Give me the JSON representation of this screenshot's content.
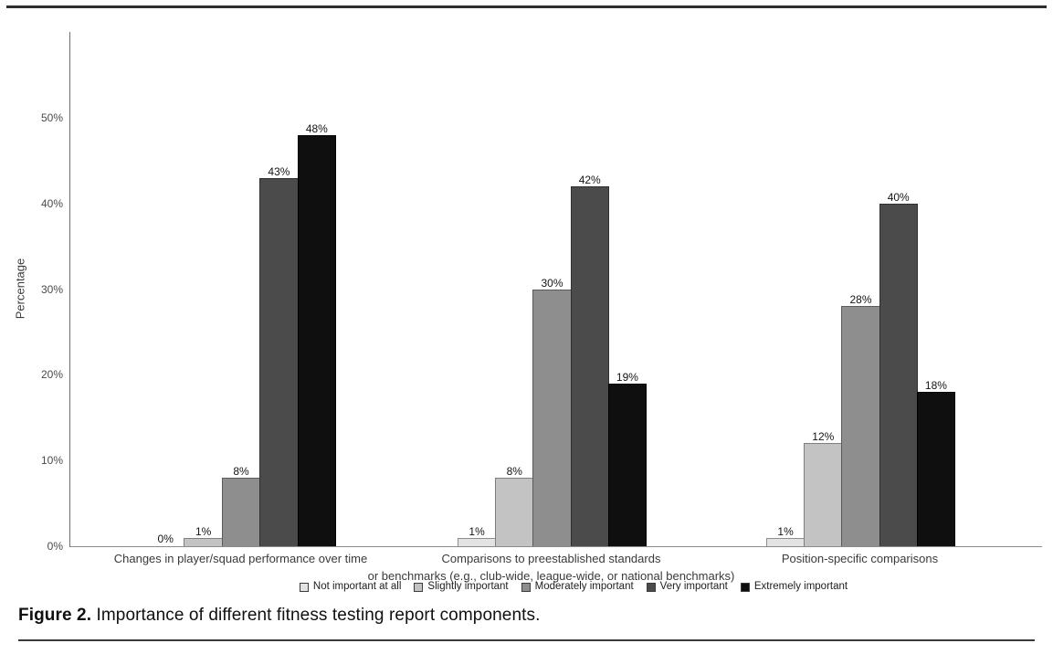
{
  "figure": {
    "caption_label": "Figure 2.",
    "caption_text": "Importance of different fitness testing report components."
  },
  "chart_data": {
    "type": "bar",
    "title": "",
    "xlabel": "",
    "ylabel": "Percentage",
    "ylim": [
      0,
      60
    ],
    "yticks": [
      0,
      10,
      20,
      30,
      40,
      50
    ],
    "ytick_suffix": "%",
    "grid": false,
    "legend_position": "bottom",
    "bar_value_labels": true,
    "categories": [
      "Changes in player/squad performance over time",
      "Comparisons to preestablished standards\nor benchmarks (e.g., club-wide, league-wide, or national benchmarks)",
      "Position-specific comparisons"
    ],
    "series": [
      {
        "name": "Not important at all",
        "color": "#e3e3e3",
        "border": "#8e8e8e",
        "values": [
          0,
          1,
          1
        ]
      },
      {
        "name": "Slightly important",
        "color": "#c3c3c3",
        "border": "#7f7f7f",
        "values": [
          1,
          8,
          12
        ]
      },
      {
        "name": "Moderately important",
        "color": "#8e8e8e",
        "border": "#5a5a5a",
        "values": [
          8,
          30,
          28
        ]
      },
      {
        "name": "Very important",
        "color": "#4b4b4b",
        "border": "#303030",
        "values": [
          43,
          42,
          40
        ]
      },
      {
        "name": "Extremely important",
        "color": "#0f0f0f",
        "border": "#000000",
        "values": [
          48,
          19,
          18
        ]
      }
    ]
  }
}
